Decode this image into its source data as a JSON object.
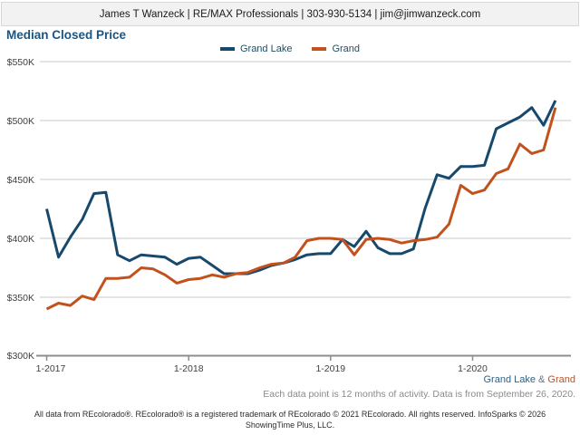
{
  "header": {
    "contact_line": "James T Wanzeck | RE/MAX Professionals | 303-930-5134 | jim@jimwanzeck.com"
  },
  "title": "Median Closed Price",
  "legend": [
    {
      "label": "Grand Lake",
      "color": "#17496d"
    },
    {
      "label": "Grand",
      "color": "#c2521d"
    }
  ],
  "colors": {
    "title": "#1d547f",
    "series1": "#2e6186",
    "series2": "#c2521d",
    "amp_gray": "#607485"
  },
  "chart_data": {
    "type": "line",
    "title": "Median Closed Price",
    "values_unit": "USD thousands (K)",
    "ylim": [
      300,
      550
    ],
    "grid": "horizontal",
    "legend_position": "top-center",
    "y_tick_labels": [
      "$550K",
      "$500K",
      "$450K",
      "$400K",
      "$350K",
      "$300K"
    ],
    "x_tick_labels": [
      "1-2017",
      "1-2018",
      "1-2019",
      "1-2020"
    ],
    "x_months": [
      "1-2017",
      "2-2017",
      "3-2017",
      "4-2017",
      "5-2017",
      "6-2017",
      "7-2017",
      "8-2017",
      "9-2017",
      "10-2017",
      "11-2017",
      "12-2017",
      "1-2018",
      "2-2018",
      "3-2018",
      "4-2018",
      "5-2018",
      "6-2018",
      "7-2018",
      "8-2018",
      "9-2018",
      "10-2018",
      "11-2018",
      "12-2018",
      "1-2019",
      "2-2019",
      "3-2019",
      "4-2019",
      "5-2019",
      "6-2019",
      "7-2019",
      "8-2019",
      "9-2019",
      "10-2019",
      "11-2019",
      "12-2019",
      "1-2020",
      "2-2020",
      "3-2020",
      "4-2020",
      "5-2020",
      "6-2020",
      "7-2020",
      "8-2020"
    ],
    "series": [
      {
        "name": "Grand Lake",
        "color": "#17496d",
        "values": [
          425,
          384,
          401,
          416,
          438,
          439,
          386,
          381,
          386,
          385,
          384,
          378,
          383,
          384,
          377,
          370,
          370,
          370,
          373,
          377,
          379,
          382,
          386,
          387,
          387,
          399,
          393,
          406,
          392,
          387,
          387,
          391,
          426,
          454,
          451,
          461,
          461,
          462,
          493,
          498,
          503,
          511,
          496,
          517
        ]
      },
      {
        "name": "Grand",
        "color": "#c2521d",
        "values": [
          340,
          345,
          343,
          351,
          348,
          366,
          366,
          367,
          375,
          374,
          369,
          362,
          365,
          366,
          369,
          367,
          370,
          371,
          375,
          378,
          379,
          384,
          398,
          400,
          400,
          399,
          386,
          399,
          400,
          399,
          396,
          398,
          399,
          401,
          412,
          445,
          438,
          441,
          455,
          459,
          480,
          472,
          475,
          511
        ]
      }
    ]
  },
  "footer": {
    "series_summary": {
      "part1": "Grand Lake",
      "amp": " & ",
      "part2": "Grand"
    },
    "data_note": "Each data point is 12 months of activity. Data is from September 26, 2020.",
    "disclaimer_line1": "All data from REcolorado®. REcolorado® is a registered trademark of REcolorado © 2021 REcolorado. All rights reserved. InfoSparks © 2026",
    "disclaimer_line2": "ShowingTime Plus, LLC."
  }
}
